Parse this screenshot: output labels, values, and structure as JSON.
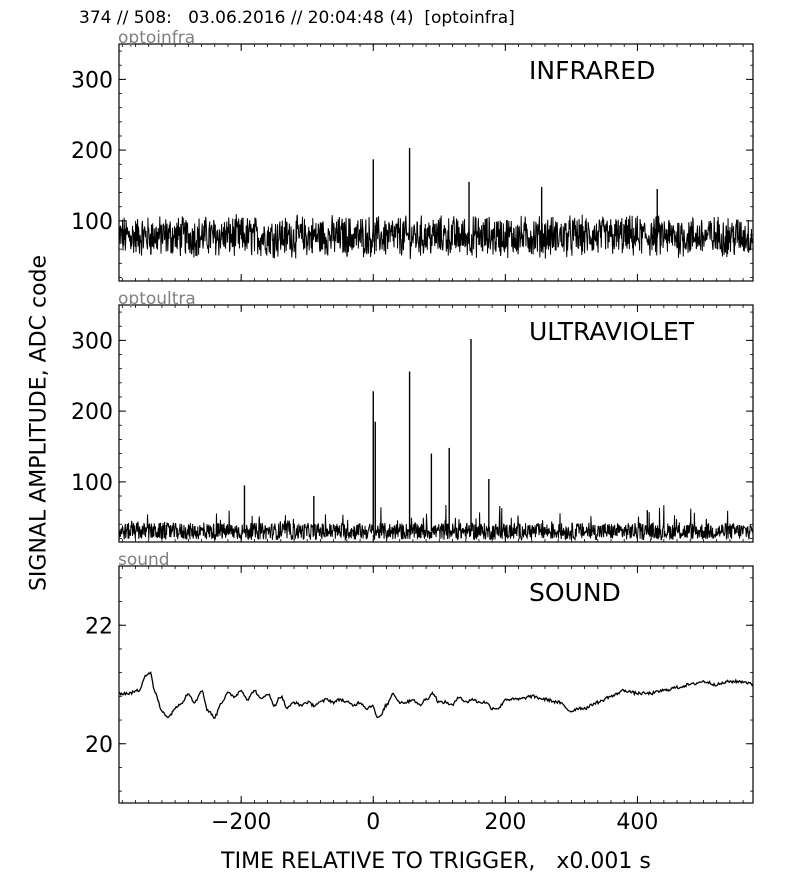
{
  "header": "374 // 508:   03.06.2016 // 20:04:48 (4)  [optoinfra]",
  "ylabel": "SIGNAL AMPLITUDE,  ADC code",
  "xlabel": "TIME RELATIVE TO TRIGGER,   x0.001 s",
  "colors": {
    "line": "#000000",
    "channel_label": "#808080",
    "background": "#ffffff"
  },
  "chart_data": [
    {
      "type": "line",
      "channel": "optoinfra",
      "title": "INFRARED",
      "xlim": [
        -385,
        575
      ],
      "ylim": [
        15,
        350
      ],
      "yticks": [
        100,
        200,
        300
      ],
      "xticks": [
        -200,
        0,
        200,
        400
      ],
      "xtick_labels_shown": false,
      "baseline": 78,
      "noise_amplitude": 25,
      "spikes": [
        {
          "x": 0,
          "y": 187
        },
        {
          "x": 55,
          "y": 203
        },
        {
          "x": 145,
          "y": 155
        },
        {
          "x": 255,
          "y": 148
        },
        {
          "x": 430,
          "y": 145
        }
      ]
    },
    {
      "type": "line",
      "channel": "optoultra",
      "title": "ULTRAVIOLET",
      "xlim": [
        -385,
        575
      ],
      "ylim": [
        15,
        350
      ],
      "yticks": [
        100,
        200,
        300
      ],
      "xticks": [
        -200,
        0,
        200,
        400
      ],
      "xtick_labels_shown": false,
      "baseline": 30,
      "noise_amplitude": 12,
      "spikes": [
        {
          "x": -195,
          "y": 95
        },
        {
          "x": -90,
          "y": 80
        },
        {
          "x": 0,
          "y": 228
        },
        {
          "x": 3,
          "y": 185
        },
        {
          "x": 55,
          "y": 256
        },
        {
          "x": 88,
          "y": 140
        },
        {
          "x": 115,
          "y": 148
        },
        {
          "x": 148,
          "y": 302
        },
        {
          "x": 175,
          "y": 104
        },
        {
          "x": 415,
          "y": 60
        }
      ]
    },
    {
      "type": "line",
      "channel": "sound",
      "title": "SOUND",
      "xlim": [
        -385,
        575
      ],
      "ylim": [
        19,
        23
      ],
      "yticks": [
        20,
        22
      ],
      "xticks": [
        -200,
        0,
        200,
        400
      ],
      "xtick_labels_shown": true,
      "x": [
        -385,
        -370,
        -355,
        -345,
        -338,
        -330,
        -320,
        -310,
        -300,
        -290,
        -280,
        -270,
        -260,
        -250,
        -240,
        -230,
        -220,
        -210,
        -200,
        -190,
        -180,
        -170,
        -160,
        -150,
        -140,
        -130,
        -120,
        -110,
        -100,
        -90,
        -80,
        -70,
        -60,
        -50,
        -40,
        -30,
        -20,
        -10,
        0,
        5,
        10,
        20,
        30,
        40,
        50,
        60,
        70,
        80,
        90,
        100,
        110,
        120,
        130,
        140,
        150,
        160,
        170,
        180,
        190,
        200,
        220,
        240,
        260,
        280,
        300,
        310,
        320,
        340,
        360,
        380,
        400,
        420,
        440,
        460,
        480,
        500,
        520,
        540,
        560,
        575
      ],
      "y": [
        20.85,
        20.85,
        20.9,
        21.15,
        21.2,
        20.85,
        20.55,
        20.45,
        20.6,
        20.7,
        20.85,
        20.7,
        20.9,
        20.55,
        20.45,
        20.7,
        20.85,
        20.8,
        20.9,
        20.75,
        20.9,
        20.75,
        20.85,
        20.65,
        20.8,
        20.6,
        20.7,
        20.65,
        20.7,
        20.65,
        20.7,
        20.75,
        20.7,
        20.75,
        20.7,
        20.65,
        20.7,
        20.6,
        20.65,
        20.45,
        20.45,
        20.65,
        20.85,
        20.7,
        20.7,
        20.75,
        20.65,
        20.75,
        20.85,
        20.7,
        20.7,
        20.65,
        20.8,
        20.7,
        20.75,
        20.7,
        20.7,
        20.6,
        20.6,
        20.75,
        20.75,
        20.8,
        20.75,
        20.7,
        20.55,
        20.6,
        20.6,
        20.7,
        20.8,
        20.9,
        20.85,
        20.85,
        20.9,
        20.95,
        21.0,
        21.05,
        21.0,
        21.05,
        21.05,
        21.0
      ]
    }
  ]
}
